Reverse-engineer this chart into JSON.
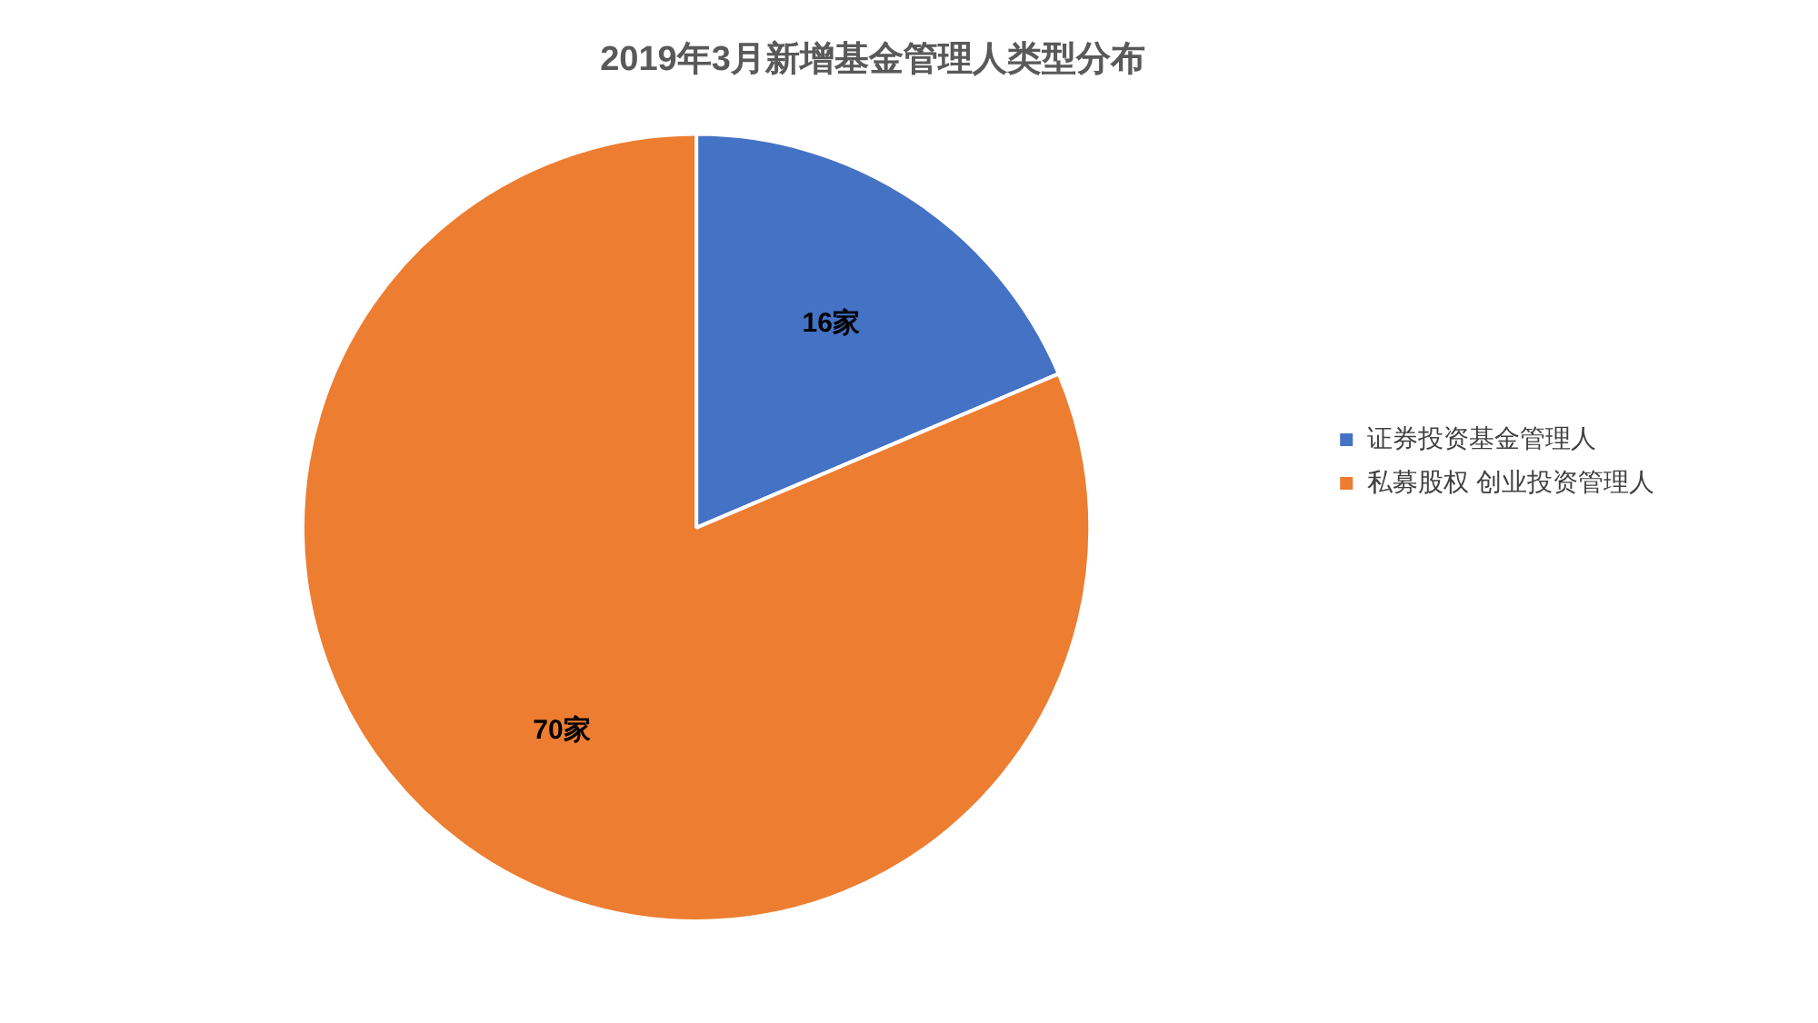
{
  "chart_data": {
    "type": "pie",
    "title": "2019年3月新增基金管理人类型分布",
    "categories": [
      "证券投资基金管理人",
      "私募股权 创业投资管理人"
    ],
    "values": [
      16,
      70
    ],
    "colors": [
      "#4472c4",
      "#ed7d31"
    ],
    "value_labels": [
      "16家",
      "70家"
    ],
    "legend": "right"
  }
}
